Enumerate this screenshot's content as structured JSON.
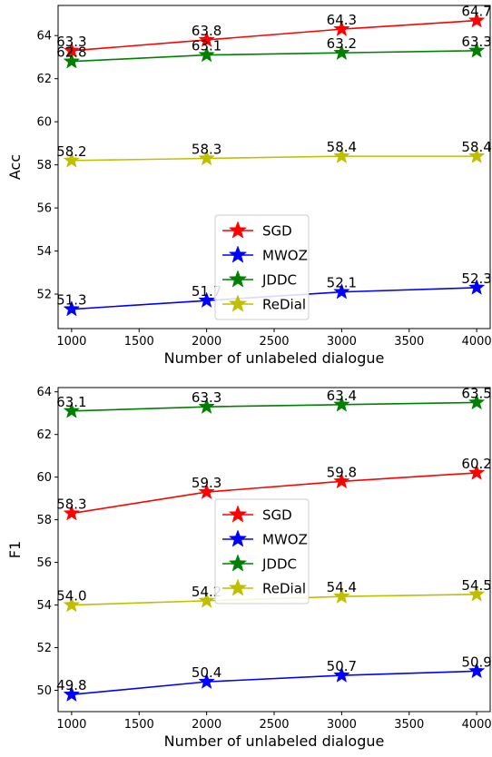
{
  "chart_data": [
    {
      "type": "line",
      "title": "",
      "xlabel": "Number of unlabeled dialogue",
      "ylabel": "Acc",
      "x": [
        1000,
        2000,
        3000,
        4000
      ],
      "xticks": [
        1000,
        1500,
        2000,
        2500,
        3000,
        3500,
        4000
      ],
      "xlim": [
        900,
        4100
      ],
      "ylim": [
        50.4,
        65.4
      ],
      "yticks": [
        52,
        54,
        56,
        58,
        60,
        62,
        64
      ],
      "grid": false,
      "legend_position": "lower-center",
      "series": [
        {
          "name": "SGD",
          "color": "#ff0000",
          "values": [
            63.3,
            63.8,
            64.3,
            64.7
          ],
          "labels": [
            "63.3",
            "63.8",
            "64.3",
            "64.7"
          ]
        },
        {
          "name": "MWOZ",
          "color": "#0000ff",
          "values": [
            51.3,
            51.7,
            52.1,
            52.3
          ],
          "labels": [
            "51.3",
            "51.7",
            "52.1",
            "52.3"
          ]
        },
        {
          "name": "JDDC",
          "color": "#008000",
          "values": [
            62.8,
            63.1,
            63.2,
            63.3
          ],
          "labels": [
            "62.8",
            "63.1",
            "63.2",
            "63.3"
          ]
        },
        {
          "name": "ReDial",
          "color": "#bfbf00",
          "values": [
            58.2,
            58.3,
            58.4,
            58.4
          ],
          "labels": [
            "58.2",
            "58.3",
            "58.4",
            "58.4"
          ]
        }
      ]
    },
    {
      "type": "line",
      "title": "",
      "xlabel": "Number of unlabeled dialogue",
      "ylabel": "F1",
      "x": [
        1000,
        2000,
        3000,
        4000
      ],
      "xticks": [
        1000,
        1500,
        2000,
        2500,
        3000,
        3500,
        4000
      ],
      "xlim": [
        900,
        4100
      ],
      "ylim": [
        49.0,
        64.2
      ],
      "yticks": [
        50,
        52,
        54,
        56,
        58,
        60,
        62,
        64
      ],
      "grid": false,
      "legend_position": "center",
      "series": [
        {
          "name": "SGD",
          "color": "#ff0000",
          "values": [
            58.3,
            59.3,
            59.8,
            60.2
          ],
          "labels": [
            "58.3",
            "59.3",
            "59.8",
            "60.2"
          ]
        },
        {
          "name": "MWOZ",
          "color": "#0000ff",
          "values": [
            49.8,
            50.4,
            50.7,
            50.9
          ],
          "labels": [
            "49.8",
            "50.4",
            "50.7",
            "50.9"
          ]
        },
        {
          "name": "JDDC",
          "color": "#008000",
          "values": [
            63.1,
            63.3,
            63.4,
            63.5
          ],
          "labels": [
            "63.1",
            "63.3",
            "63.4",
            "63.5"
          ]
        },
        {
          "name": "ReDial",
          "color": "#bfbf00",
          "values": [
            54.0,
            54.2,
            54.4,
            54.5
          ],
          "labels": [
            "54.0",
            "54.2",
            "54.4",
            "54.5"
          ]
        }
      ]
    }
  ]
}
